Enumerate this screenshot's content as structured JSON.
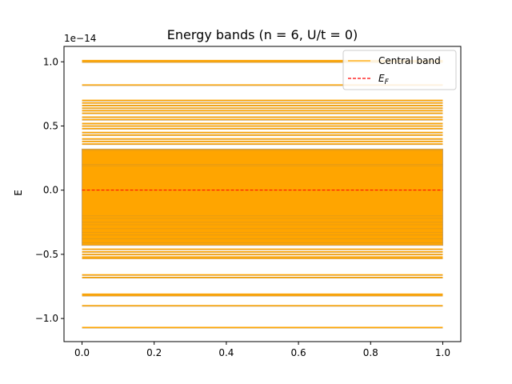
{
  "chart_data": {
    "type": "line",
    "title": "Energy bands (n = 6, U/t = 0)",
    "xlabel": "",
    "ylabel": "E",
    "offset_label": "1e−14",
    "xlim": [
      -0.05,
      1.05
    ],
    "ylim": [
      -1.18,
      1.12
    ],
    "x_ticks": [
      0.0,
      0.2,
      0.4,
      0.6,
      0.8,
      1.0
    ],
    "x_tick_labels": [
      "0.0",
      "0.2",
      "0.4",
      "0.6",
      "0.8",
      "1.0"
    ],
    "y_ticks": [
      -1.0,
      -0.5,
      0.0,
      0.5,
      1.0
    ],
    "y_tick_labels": [
      "−1.0",
      "−0.5",
      "0.0",
      "0.5",
      "1.0"
    ],
    "band_x_range": [
      0.0,
      1.0
    ],
    "band_levels": [
      1.01,
      1.0,
      0.82,
      0.7,
      0.68,
      0.66,
      0.64,
      0.62,
      0.6,
      0.57,
      0.55,
      0.52,
      0.5,
      0.48,
      0.45,
      0.43,
      0.4,
      0.38,
      0.36,
      -0.46,
      -0.48,
      -0.5,
      -0.52,
      -0.53,
      -0.66,
      -0.68,
      -0.81,
      -0.82,
      -0.9,
      -1.07
    ],
    "central_band_fill": [
      -0.43,
      0.32
    ],
    "central_band_inner_lines": [
      0.31,
      0.2,
      0.19,
      -0.2,
      -0.22,
      -0.25,
      -0.27,
      -0.3,
      -0.33,
      -0.35,
      -0.38,
      -0.41
    ],
    "fermi_level": 0.0,
    "legend": [
      {
        "label": "Central band",
        "color": "#ffa500",
        "style": "solid"
      },
      {
        "label": "E",
        "subscript": "F",
        "color": "#ff0000",
        "style": "dashed"
      }
    ],
    "legend_position": "top-right",
    "band_color": "#ffa500",
    "band_edge_color": "#c8a060",
    "fermi_color": "#ff0000"
  }
}
